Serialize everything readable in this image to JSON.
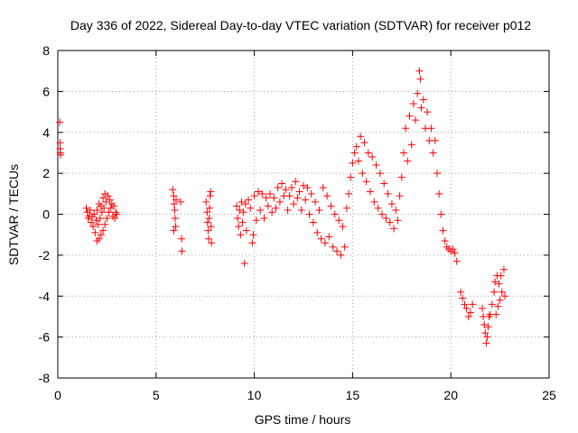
{
  "chart_data": {
    "type": "scatter",
    "title": "Day 336 of 2022, Sidereal Day-to-day VTEC variation (SDTVAR) for receiver p012",
    "xlabel": "GPS time / hours",
    "ylabel": "SDTVAR / TECUs",
    "xlim": [
      0,
      25
    ],
    "ylim": [
      -8,
      8
    ],
    "xticks": [
      0,
      5,
      10,
      15,
      20,
      25
    ],
    "xtick_labels": [
      "0",
      "5",
      "10",
      "15",
      "20",
      "25"
    ],
    "yticks": [
      -8,
      -6,
      -4,
      -2,
      0,
      2,
      4,
      6,
      8
    ],
    "ytick_labels": [
      "-8",
      "-6",
      "-4",
      "-2",
      "0",
      "2",
      "4",
      "6",
      "8"
    ],
    "grid": true,
    "marker": "+",
    "color": "#ff0000",
    "series": [
      {
        "name": "SDTVAR",
        "points": [
          [
            0.1,
            4.5
          ],
          [
            0.12,
            3.5
          ],
          [
            0.12,
            3.2
          ],
          [
            0.13,
            3.0
          ],
          [
            0.14,
            2.9
          ],
          [
            1.45,
            0.3
          ],
          [
            1.5,
            0.1
          ],
          [
            1.55,
            -0.2
          ],
          [
            1.6,
            -0.1
          ],
          [
            1.65,
            0.2
          ],
          [
            1.7,
            -0.4
          ],
          [
            1.75,
            -0.1
          ],
          [
            1.8,
            -0.6
          ],
          [
            1.85,
            0.0
          ],
          [
            1.9,
            -0.9
          ],
          [
            1.95,
            -0.3
          ],
          [
            2.0,
            -1.3
          ],
          [
            2.05,
            -0.5
          ],
          [
            2.1,
            -1.2
          ],
          [
            2.15,
            -0.2
          ],
          [
            2.2,
            -1.0
          ],
          [
            2.25,
            0.1
          ],
          [
            2.3,
            -0.8
          ],
          [
            2.35,
            0.3
          ],
          [
            2.4,
            -0.5
          ],
          [
            2.45,
            0.6
          ],
          [
            2.5,
            -0.2
          ],
          [
            2.55,
            0.9
          ],
          [
            2.6,
            0.1
          ],
          [
            2.65,
            0.7
          ],
          [
            2.7,
            0.3
          ],
          [
            2.75,
            0.5
          ],
          [
            2.8,
            -0.1
          ],
          [
            2.85,
            0.4
          ],
          [
            2.9,
            -0.2
          ],
          [
            2.95,
            0.1
          ],
          [
            3.0,
            0.0
          ],
          [
            2.0,
            0.2
          ],
          [
            2.1,
            0.5
          ],
          [
            2.2,
            0.4
          ],
          [
            2.3,
            0.8
          ],
          [
            2.4,
            1.0
          ],
          [
            5.85,
            1.2
          ],
          [
            5.9,
            0.9
          ],
          [
            5.92,
            0.5
          ],
          [
            5.95,
            0.2
          ],
          [
            5.97,
            -0.2
          ],
          [
            6.0,
            -0.6
          ],
          [
            5.9,
            -0.8
          ],
          [
            6.02,
            0.7
          ],
          [
            6.25,
            0.6
          ],
          [
            6.3,
            -1.2
          ],
          [
            6.32,
            -1.8
          ],
          [
            7.55,
            0.6
          ],
          [
            7.6,
            0.1
          ],
          [
            7.62,
            -0.4
          ],
          [
            7.65,
            -0.8
          ],
          [
            7.68,
            -1.2
          ],
          [
            7.7,
            -0.2
          ],
          [
            7.72,
            0.3
          ],
          [
            7.75,
            0.9
          ],
          [
            7.78,
            1.1
          ],
          [
            7.8,
            -0.6
          ],
          [
            7.82,
            -1.4
          ],
          [
            9.1,
            0.4
          ],
          [
            9.15,
            -0.2
          ],
          [
            9.2,
            -0.6
          ],
          [
            9.25,
            0.2
          ],
          [
            9.3,
            -1.0
          ],
          [
            9.35,
            0.6
          ],
          [
            9.4,
            -0.4
          ],
          [
            9.45,
            0.1
          ],
          [
            9.5,
            -2.4
          ],
          [
            9.55,
            0.5
          ],
          [
            9.6,
            -0.8
          ],
          [
            9.7,
            0.7
          ],
          [
            9.8,
            0.3
          ],
          [
            9.9,
            -1.4
          ],
          [
            9.95,
            -1.0
          ],
          [
            10.0,
            0.9
          ],
          [
            10.1,
            -0.3
          ],
          [
            10.2,
            1.1
          ],
          [
            10.3,
            0.2
          ],
          [
            10.4,
            1.0
          ],
          [
            10.5,
            -0.2
          ],
          [
            10.6,
            0.8
          ],
          [
            10.7,
            0.4
          ],
          [
            10.8,
            1.0
          ],
          [
            10.9,
            0.1
          ],
          [
            11.0,
            0.8
          ],
          [
            11.1,
            0.3
          ],
          [
            11.2,
            1.3
          ],
          [
            11.3,
            0.6
          ],
          [
            11.4,
            1.5
          ],
          [
            11.5,
            0.9
          ],
          [
            11.6,
            1.2
          ],
          [
            11.7,
            0.2
          ],
          [
            11.8,
            0.9
          ],
          [
            11.9,
            1.3
          ],
          [
            12.0,
            0.5
          ],
          [
            12.1,
            1.6
          ],
          [
            12.2,
            0.8
          ],
          [
            12.3,
            1.1
          ],
          [
            12.4,
            0.2
          ],
          [
            12.5,
            1.4
          ],
          [
            12.6,
            0.7
          ],
          [
            12.7,
            1.3
          ],
          [
            12.8,
            0.0
          ],
          [
            12.9,
            1.0
          ],
          [
            13.0,
            -0.4
          ],
          [
            13.1,
            0.6
          ],
          [
            13.2,
            -0.9
          ],
          [
            13.3,
            0.2
          ],
          [
            13.4,
            -1.2
          ],
          [
            13.5,
            1.3
          ],
          [
            13.6,
            -1.4
          ],
          [
            13.7,
            0.9
          ],
          [
            13.8,
            -1.1
          ],
          [
            13.9,
            0.4
          ],
          [
            14.0,
            -1.6
          ],
          [
            14.1,
            0.0
          ],
          [
            14.2,
            -1.8
          ],
          [
            14.3,
            -0.3
          ],
          [
            14.4,
            -2.0
          ],
          [
            14.5,
            -0.6
          ],
          [
            14.6,
            -1.6
          ],
          [
            14.7,
            0.3
          ],
          [
            14.8,
            1.0
          ],
          [
            14.9,
            1.8
          ],
          [
            15.0,
            2.5
          ],
          [
            15.1,
            3.0
          ],
          [
            15.2,
            3.3
          ],
          [
            15.3,
            2.6
          ],
          [
            15.4,
            3.8
          ],
          [
            15.5,
            2.0
          ],
          [
            15.6,
            3.5
          ],
          [
            15.7,
            1.6
          ],
          [
            15.8,
            3.0
          ],
          [
            15.9,
            1.1
          ],
          [
            16.0,
            2.8
          ],
          [
            16.1,
            0.6
          ],
          [
            16.2,
            2.4
          ],
          [
            16.3,
            0.3
          ],
          [
            16.4,
            2.0
          ],
          [
            16.5,
            0.0
          ],
          [
            16.6,
            1.5
          ],
          [
            16.7,
            -0.2
          ],
          [
            16.8,
            1.0
          ],
          [
            16.9,
            -0.4
          ],
          [
            17.0,
            0.5
          ],
          [
            17.1,
            -0.7
          ],
          [
            17.2,
            0.2
          ],
          [
            17.3,
            -0.3
          ],
          [
            17.4,
            0.9
          ],
          [
            17.5,
            1.8
          ],
          [
            17.6,
            3.0
          ],
          [
            17.7,
            4.2
          ],
          [
            17.8,
            2.6
          ],
          [
            17.9,
            4.8
          ],
          [
            18.0,
            3.4
          ],
          [
            18.1,
            5.4
          ],
          [
            18.2,
            4.6
          ],
          [
            18.3,
            5.9
          ],
          [
            18.4,
            7.0
          ],
          [
            18.45,
            6.6
          ],
          [
            18.5,
            5.2
          ],
          [
            18.6,
            5.6
          ],
          [
            18.7,
            4.2
          ],
          [
            18.8,
            5.0
          ],
          [
            18.9,
            3.6
          ],
          [
            19.0,
            4.2
          ],
          [
            19.1,
            3.0
          ],
          [
            19.2,
            3.6
          ],
          [
            19.3,
            2.0
          ],
          [
            19.4,
            1.0
          ],
          [
            19.5,
            0.0
          ],
          [
            19.6,
            -0.8
          ],
          [
            19.7,
            -1.3
          ],
          [
            19.8,
            -1.6
          ],
          [
            19.9,
            -1.7
          ],
          [
            20.0,
            -1.8
          ],
          [
            20.1,
            -1.7
          ],
          [
            20.2,
            -1.9
          ],
          [
            20.3,
            -2.3
          ],
          [
            20.5,
            -3.8
          ],
          [
            20.6,
            -4.1
          ],
          [
            20.7,
            -4.4
          ],
          [
            20.8,
            -4.6
          ],
          [
            20.9,
            -5.0
          ],
          [
            21.0,
            -4.8
          ],
          [
            21.1,
            -4.4
          ],
          [
            21.6,
            -4.6
          ],
          [
            21.65,
            -5.0
          ],
          [
            21.7,
            -5.4
          ],
          [
            21.75,
            -5.8
          ],
          [
            21.8,
            -6.3
          ],
          [
            21.85,
            -6.0
          ],
          [
            21.9,
            -5.5
          ],
          [
            21.95,
            -5.0
          ],
          [
            22.0,
            -4.9
          ],
          [
            22.1,
            -4.4
          ],
          [
            22.2,
            -3.8
          ],
          [
            22.25,
            -3.3
          ],
          [
            22.3,
            -4.9
          ],
          [
            22.35,
            -3.0
          ],
          [
            22.4,
            -4.5
          ],
          [
            22.45,
            -3.4
          ],
          [
            22.5,
            -4.2
          ],
          [
            22.55,
            -3.0
          ],
          [
            22.6,
            -3.8
          ],
          [
            22.7,
            -2.7
          ],
          [
            22.75,
            -4.0
          ]
        ]
      }
    ]
  }
}
